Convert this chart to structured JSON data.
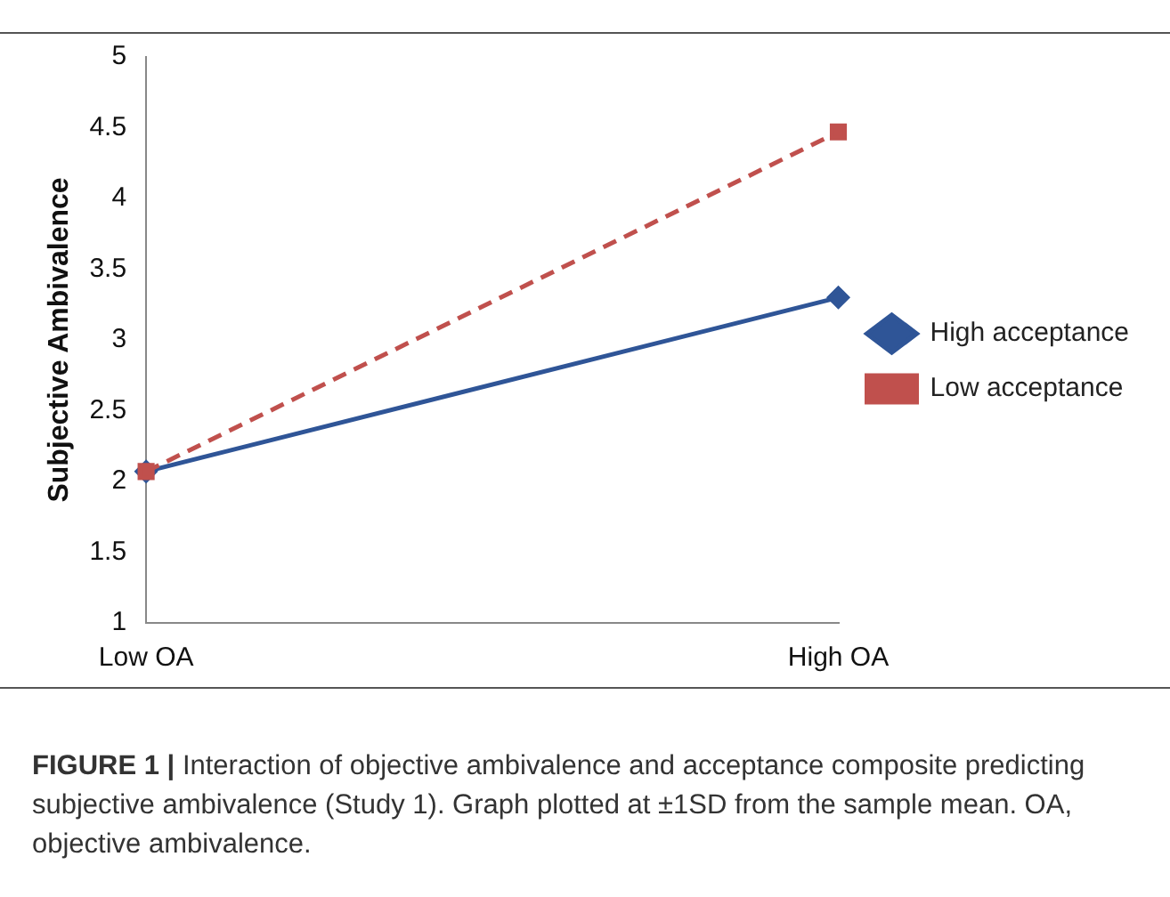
{
  "chart_data": {
    "type": "line",
    "ylabel": "Subjective Ambivalence",
    "categories": [
      "Low OA",
      "High OA"
    ],
    "series": [
      {
        "name": "High acceptance",
        "color": "#2f5597",
        "values": [
          2.07,
          3.3
        ],
        "marker": "diamond",
        "line_style": "solid"
      },
      {
        "name": "Low acceptance",
        "color": "#c0504d",
        "values": [
          2.07,
          4.47
        ],
        "marker": "square",
        "line_style": "dashed"
      }
    ],
    "ylim": [
      1,
      5
    ],
    "yticks": [
      1,
      1.5,
      2,
      2.5,
      3,
      3.5,
      4,
      4.5,
      5
    ],
    "grid": false,
    "legend": "right",
    "annotations": [
      "FIGURE 1 | Interaction of objective ambivalence and acceptance composite predicting subjective ambivalence (Study 1). Graph plotted at ±1SD from the sample mean. OA, objective ambivalence."
    ]
  }
}
